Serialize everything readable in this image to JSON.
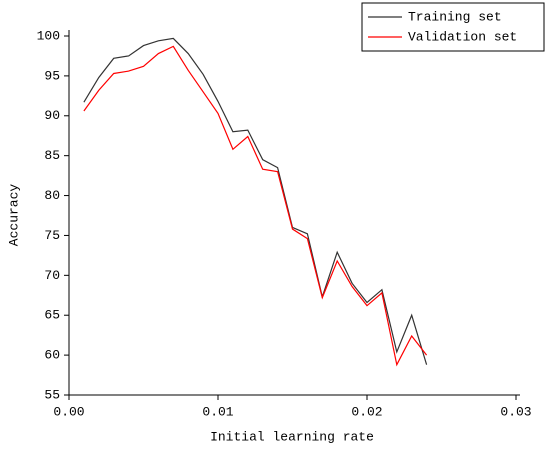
{
  "chart_data": {
    "type": "line",
    "x_label": "Initial learning rate",
    "y_label": "Accuracy",
    "x": [
      0.001,
      0.002,
      0.003,
      0.004,
      0.005,
      0.006,
      0.007,
      0.008,
      0.009,
      0.01,
      0.011,
      0.012,
      0.013,
      0.014,
      0.015,
      0.016,
      0.017,
      0.018,
      0.019,
      0.02,
      0.021,
      0.022,
      0.023,
      0.024
    ],
    "series": [
      {
        "name": "Training set",
        "color": "#333333",
        "values": [
          91.7,
          94.8,
          97.2,
          97.5,
          98.8,
          99.4,
          99.7,
          97.8,
          95.2,
          91.8,
          88.0,
          88.2,
          84.5,
          83.5,
          76.0,
          75.2,
          67.3,
          72.9,
          69.0,
          66.6,
          68.2,
          60.4,
          65.0,
          58.8
        ]
      },
      {
        "name": "Validation set",
        "color": "#ff0000",
        "values": [
          90.6,
          93.2,
          95.3,
          95.6,
          96.2,
          97.8,
          98.7,
          95.7,
          93.0,
          90.3,
          85.8,
          87.4,
          83.3,
          83.0,
          75.8,
          74.6,
          67.2,
          71.8,
          68.6,
          66.2,
          67.8,
          58.8,
          62.4,
          60.0
        ]
      }
    ],
    "xlim": [
      0,
      0.03
    ],
    "xticks": [
      {
        "value": 0,
        "label": "0.00"
      },
      0.01,
      0.02,
      0.03
    ],
    "ylim": [
      55,
      100
    ],
    "yticks": [
      55,
      60,
      65,
      70,
      75,
      80,
      85,
      90,
      95,
      100
    ],
    "legend": "top-right"
  }
}
